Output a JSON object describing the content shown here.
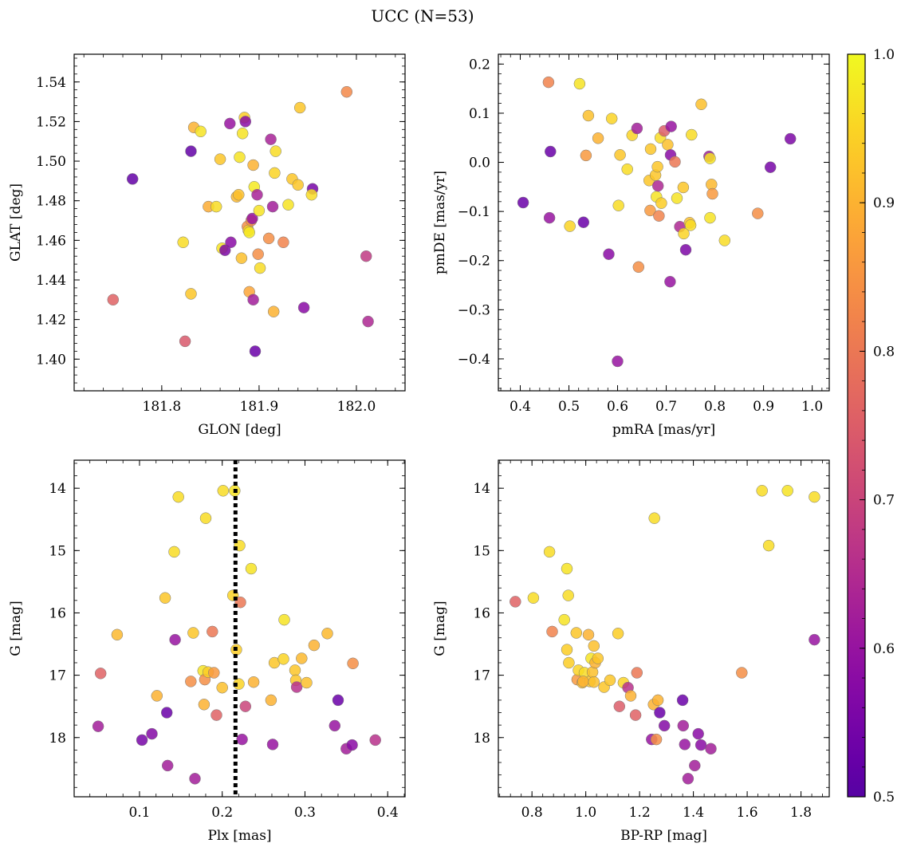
{
  "figure": {
    "title": "UCC (N=53)"
  },
  "colorbar": {
    "colormap": "plasma",
    "range": [
      0.5,
      1.0
    ],
    "ticks": [
      0.5,
      0.6,
      0.7,
      0.8,
      0.9,
      1.0
    ],
    "tick_labels": [
      "0.5",
      "0.6",
      "0.7",
      "0.8",
      "0.9",
      "1.0"
    ]
  },
  "chart_data": [
    {
      "type": "scatter",
      "xlabel": "GLON [deg]",
      "ylabel": "GLAT [deg]",
      "xlim": [
        181.71,
        182.05
      ],
      "ylim": [
        1.384,
        1.554
      ],
      "y_inverted": false,
      "xticks": [
        181.8,
        181.9,
        182.0
      ],
      "xtick_labels": [
        "181.8",
        "181.9",
        "182.0"
      ],
      "yticks": [
        1.4,
        1.42,
        1.44,
        1.46,
        1.48,
        1.5,
        1.52,
        1.54
      ],
      "ytick_labels": [
        "1.40",
        "1.42",
        "1.44",
        "1.46",
        "1.48",
        "1.50",
        "1.52",
        "1.54"
      ],
      "points": [
        [
          181.77,
          1.491,
          0.52
        ],
        [
          181.75,
          1.43,
          0.76
        ],
        [
          181.824,
          1.409,
          0.74
        ],
        [
          181.83,
          1.505,
          0.52
        ],
        [
          181.833,
          1.517,
          0.9
        ],
        [
          181.84,
          1.515,
          0.97
        ],
        [
          181.848,
          1.477,
          0.89
        ],
        [
          181.856,
          1.477,
          0.96
        ],
        [
          181.86,
          1.501,
          0.93
        ],
        [
          181.862,
          1.456,
          0.97
        ],
        [
          181.865,
          1.455,
          0.56
        ],
        [
          181.87,
          1.519,
          0.6
        ],
        [
          181.871,
          1.459,
          0.58
        ],
        [
          181.877,
          1.482,
          0.91
        ],
        [
          181.879,
          1.483,
          0.92
        ],
        [
          181.88,
          1.502,
          0.97
        ],
        [
          181.882,
          1.451,
          0.92
        ],
        [
          181.883,
          1.514,
          0.97
        ],
        [
          181.885,
          1.522,
          0.94
        ],
        [
          181.886,
          1.52,
          0.58
        ],
        [
          181.888,
          1.467,
          0.84
        ],
        [
          181.889,
          1.465,
          0.94
        ],
        [
          181.89,
          1.464,
          0.98
        ],
        [
          181.89,
          1.434,
          0.88
        ],
        [
          181.892,
          1.47,
          0.84
        ],
        [
          181.893,
          1.471,
          0.6
        ],
        [
          181.894,
          1.43,
          0.62
        ],
        [
          181.894,
          1.498,
          0.9
        ],
        [
          181.895,
          1.487,
          0.98
        ],
        [
          181.896,
          1.404,
          0.53
        ],
        [
          181.898,
          1.483,
          0.63
        ],
        [
          181.899,
          1.453,
          0.84
        ],
        [
          181.9,
          1.475,
          0.97
        ],
        [
          181.901,
          1.446,
          0.96
        ],
        [
          181.91,
          1.461,
          0.84
        ],
        [
          181.912,
          1.511,
          0.63
        ],
        [
          181.914,
          1.477,
          0.62
        ],
        [
          181.915,
          1.424,
          0.9
        ],
        [
          181.916,
          1.494,
          0.95
        ],
        [
          181.917,
          1.505,
          0.96
        ],
        [
          181.925,
          1.459,
          0.82
        ],
        [
          181.93,
          1.478,
          0.97
        ],
        [
          181.934,
          1.491,
          0.93
        ],
        [
          181.94,
          1.488,
          0.93
        ],
        [
          181.942,
          1.527,
          0.93
        ],
        [
          181.946,
          1.426,
          0.58
        ],
        [
          181.955,
          1.486,
          0.55
        ],
        [
          181.954,
          1.483,
          0.96
        ],
        [
          181.99,
          1.535,
          0.83
        ],
        [
          182.01,
          1.452,
          0.68
        ],
        [
          182.012,
          1.419,
          0.64
        ],
        [
          181.822,
          1.459,
          0.96
        ],
        [
          181.83,
          1.433,
          0.93
        ]
      ]
    },
    {
      "type": "scatter",
      "xlabel": "pmRA [mas/yr]",
      "ylabel": "pmDE [mas/yr]",
      "xlim": [
        0.355,
        1.035
      ],
      "ylim": [
        -0.465,
        0.22
      ],
      "y_inverted": false,
      "xticks": [
        0.4,
        0.5,
        0.6,
        0.7,
        0.8,
        0.9,
        1.0
      ],
      "xtick_labels": [
        "0.4",
        "0.5",
        "0.6",
        "0.7",
        "0.8",
        "0.9",
        "1.0"
      ],
      "yticks": [
        -0.4,
        -0.3,
        -0.2,
        -0.1,
        0.0,
        0.1,
        0.2
      ],
      "ytick_labels": [
        "−0.4",
        "−0.3",
        "−0.2",
        "−0.1",
        "0.0",
        "0.1",
        "0.2"
      ],
      "points": [
        [
          0.406,
          -0.082,
          0.53
        ],
        [
          0.458,
          0.163,
          0.82
        ],
        [
          0.46,
          -0.113,
          0.6
        ],
        [
          0.462,
          0.022,
          0.53
        ],
        [
          0.502,
          -0.13,
          0.95
        ],
        [
          0.522,
          0.16,
          0.97
        ],
        [
          0.53,
          -0.122,
          0.53
        ],
        [
          0.535,
          0.014,
          0.86
        ],
        [
          0.54,
          0.095,
          0.92
        ],
        [
          0.56,
          0.049,
          0.9
        ],
        [
          0.582,
          -0.187,
          0.58
        ],
        [
          0.588,
          0.089,
          0.95
        ],
        [
          0.6,
          -0.405,
          0.6
        ],
        [
          0.602,
          -0.088,
          0.96
        ],
        [
          0.605,
          0.015,
          0.93
        ],
        [
          0.62,
          -0.014,
          0.96
        ],
        [
          0.63,
          0.055,
          0.95
        ],
        [
          0.64,
          0.069,
          0.62
        ],
        [
          0.643,
          -0.213,
          0.84
        ],
        [
          0.665,
          -0.037,
          0.93
        ],
        [
          0.667,
          -0.098,
          0.86
        ],
        [
          0.668,
          0.027,
          0.93
        ],
        [
          0.678,
          -0.026,
          0.93
        ],
        [
          0.68,
          -0.07,
          0.97
        ],
        [
          0.682,
          -0.009,
          0.93
        ],
        [
          0.683,
          -0.048,
          0.64
        ],
        [
          0.685,
          -0.109,
          0.82
        ],
        [
          0.688,
          0.05,
          0.96
        ],
        [
          0.69,
          -0.083,
          0.94
        ],
        [
          0.696,
          0.064,
          0.75
        ],
        [
          0.703,
          0.036,
          0.92
        ],
        [
          0.708,
          -0.243,
          0.6
        ],
        [
          0.709,
          0.015,
          0.58
        ],
        [
          0.71,
          0.073,
          0.6
        ],
        [
          0.718,
          0.001,
          0.8
        ],
        [
          0.722,
          -0.073,
          0.97
        ],
        [
          0.728,
          -0.131,
          0.64
        ],
        [
          0.735,
          -0.051,
          0.93
        ],
        [
          0.736,
          -0.145,
          0.95
        ],
        [
          0.74,
          -0.178,
          0.56
        ],
        [
          0.748,
          -0.123,
          0.92
        ],
        [
          0.75,
          -0.128,
          0.96
        ],
        [
          0.752,
          0.056,
          0.96
        ],
        [
          0.772,
          0.118,
          0.92
        ],
        [
          0.788,
          0.012,
          0.62
        ],
        [
          0.79,
          0.008,
          0.97
        ],
        [
          0.79,
          -0.113,
          0.97
        ],
        [
          0.793,
          -0.045,
          0.91
        ],
        [
          0.795,
          -0.064,
          0.86
        ],
        [
          0.82,
          -0.159,
          0.96
        ],
        [
          0.888,
          -0.104,
          0.84
        ],
        [
          0.914,
          -0.01,
          0.55
        ],
        [
          0.955,
          0.048,
          0.56
        ]
      ]
    },
    {
      "type": "scatter",
      "xlabel": "Plx [mas]",
      "ylabel": "G [mag]",
      "xlim": [
        0.021,
        0.421
      ],
      "ylim": [
        18.95,
        13.55
      ],
      "y_inverted": true,
      "xticks": [
        0.1,
        0.2,
        0.3,
        0.4
      ],
      "xtick_labels": [
        "0.1",
        "0.2",
        "0.3",
        "0.4"
      ],
      "yticks": [
        14,
        15,
        16,
        17,
        18
      ],
      "ytick_labels": [
        "14",
        "15",
        "16",
        "17",
        "18"
      ],
      "vline": 0.216,
      "points": [
        [
          0.05,
          17.82,
          0.62
        ],
        [
          0.053,
          16.97,
          0.76
        ],
        [
          0.073,
          16.35,
          0.91
        ],
        [
          0.103,
          18.04,
          0.55
        ],
        [
          0.115,
          17.94,
          0.57
        ],
        [
          0.121,
          17.33,
          0.9
        ],
        [
          0.131,
          15.76,
          0.93
        ],
        [
          0.133,
          17.6,
          0.53
        ],
        [
          0.134,
          18.45,
          0.62
        ],
        [
          0.142,
          15.02,
          0.96
        ],
        [
          0.143,
          16.43,
          0.6
        ],
        [
          0.147,
          14.14,
          0.96
        ],
        [
          0.162,
          17.1,
          0.84
        ],
        [
          0.165,
          16.32,
          0.93
        ],
        [
          0.167,
          18.66,
          0.62
        ],
        [
          0.177,
          16.93,
          0.97
        ],
        [
          0.178,
          17.47,
          0.9
        ],
        [
          0.179,
          17.07,
          0.84
        ],
        [
          0.18,
          14.48,
          0.96
        ],
        [
          0.183,
          16.95,
          0.94
        ],
        [
          0.188,
          16.3,
          0.8
        ],
        [
          0.19,
          16.96,
          0.86
        ],
        [
          0.193,
          17.64,
          0.76
        ],
        [
          0.2,
          17.2,
          0.92
        ],
        [
          0.201,
          14.04,
          0.96
        ],
        [
          0.213,
          15.72,
          0.95
        ],
        [
          0.215,
          14.04,
          0.97
        ],
        [
          0.217,
          16.59,
          0.94
        ],
        [
          0.22,
          17.14,
          0.95
        ],
        [
          0.221,
          14.92,
          0.96
        ],
        [
          0.222,
          15.83,
          0.8
        ],
        [
          0.224,
          18.03,
          0.6
        ],
        [
          0.228,
          17.5,
          0.7
        ],
        [
          0.235,
          15.29,
          0.97
        ],
        [
          0.238,
          17.11,
          0.9
        ],
        [
          0.259,
          17.4,
          0.9
        ],
        [
          0.261,
          18.11,
          0.6
        ],
        [
          0.263,
          16.8,
          0.93
        ],
        [
          0.274,
          16.74,
          0.95
        ],
        [
          0.275,
          16.11,
          0.97
        ],
        [
          0.288,
          16.92,
          0.93
        ],
        [
          0.289,
          17.08,
          0.93
        ],
        [
          0.29,
          17.19,
          0.66
        ],
        [
          0.296,
          16.73,
          0.91
        ],
        [
          0.302,
          17.12,
          0.92
        ],
        [
          0.311,
          16.52,
          0.9
        ],
        [
          0.327,
          16.33,
          0.91
        ],
        [
          0.336,
          17.81,
          0.6
        ],
        [
          0.34,
          17.4,
          0.53
        ],
        [
          0.35,
          18.18,
          0.62
        ],
        [
          0.357,
          18.12,
          0.58
        ],
        [
          0.358,
          16.81,
          0.84
        ],
        [
          0.385,
          18.04,
          0.66
        ]
      ]
    },
    {
      "type": "scatter",
      "xlabel": "BP-RP [mag]",
      "ylabel": "G [mag]",
      "xlim": [
        0.675,
        1.905
      ],
      "ylim": [
        18.95,
        13.55
      ],
      "y_inverted": true,
      "xticks": [
        0.8,
        1.0,
        1.2,
        1.4,
        1.6,
        1.8
      ],
      "xtick_labels": [
        "0.8",
        "1.0",
        "1.2",
        "1.4",
        "1.6",
        "1.8"
      ],
      "yticks": [
        14,
        15,
        16,
        17,
        18
      ],
      "ytick_labels": [
        "14",
        "15",
        "16",
        "17",
        "18"
      ],
      "points": [
        [
          0.738,
          15.82,
          0.76
        ],
        [
          0.805,
          15.76,
          0.96
        ],
        [
          0.865,
          15.02,
          0.96
        ],
        [
          0.875,
          16.3,
          0.82
        ],
        [
          0.92,
          16.11,
          0.97
        ],
        [
          0.93,
          15.29,
          0.97
        ],
        [
          0.93,
          16.59,
          0.94
        ],
        [
          0.935,
          15.72,
          0.96
        ],
        [
          0.937,
          16.8,
          0.94
        ],
        [
          0.965,
          16.32,
          0.93
        ],
        [
          0.968,
          17.07,
          0.86
        ],
        [
          0.973,
          16.92,
          0.95
        ],
        [
          0.987,
          17.12,
          0.92
        ],
        [
          0.995,
          16.96,
          0.96
        ],
        [
          1.01,
          16.35,
          0.9
        ],
        [
          1.015,
          17.1,
          0.93
        ],
        [
          1.02,
          16.73,
          0.97
        ],
        [
          1.025,
          16.95,
          0.92
        ],
        [
          1.03,
          16.53,
          0.92
        ],
        [
          1.035,
          16.8,
          0.9
        ],
        [
          1.045,
          16.73,
          0.93
        ],
        [
          1.068,
          17.19,
          0.93
        ],
        [
          1.09,
          17.08,
          0.93
        ],
        [
          1.12,
          16.33,
          0.94
        ],
        [
          1.125,
          17.5,
          0.75
        ],
        [
          1.14,
          17.12,
          0.95
        ],
        [
          1.157,
          17.2,
          0.66
        ],
        [
          1.167,
          17.33,
          0.9
        ],
        [
          1.185,
          17.64,
          0.76
        ],
        [
          1.19,
          16.96,
          0.8
        ],
        [
          1.245,
          18.03,
          0.6
        ],
        [
          1.252,
          17.47,
          0.9
        ],
        [
          1.255,
          14.48,
          0.96
        ],
        [
          1.262,
          18.03,
          0.84
        ],
        [
          1.268,
          17.4,
          0.9
        ],
        [
          1.275,
          17.6,
          0.53
        ],
        [
          1.292,
          17.81,
          0.57
        ],
        [
          1.36,
          17.4,
          0.53
        ],
        [
          1.362,
          17.81,
          0.62
        ],
        [
          1.368,
          18.11,
          0.6
        ],
        [
          1.38,
          18.66,
          0.62
        ],
        [
          1.405,
          18.45,
          0.62
        ],
        [
          1.418,
          17.94,
          0.58
        ],
        [
          1.428,
          18.12,
          0.58
        ],
        [
          1.465,
          18.18,
          0.62
        ],
        [
          1.58,
          16.96,
          0.84
        ],
        [
          1.655,
          14.04,
          0.96
        ],
        [
          1.68,
          14.92,
          0.96
        ],
        [
          1.75,
          14.04,
          0.97
        ],
        [
          1.85,
          14.14,
          0.96
        ],
        [
          1.85,
          16.43,
          0.6
        ],
        [
          0.99,
          17.1,
          0.9
        ],
        [
          1.03,
          17.11,
          0.92
        ]
      ]
    }
  ]
}
